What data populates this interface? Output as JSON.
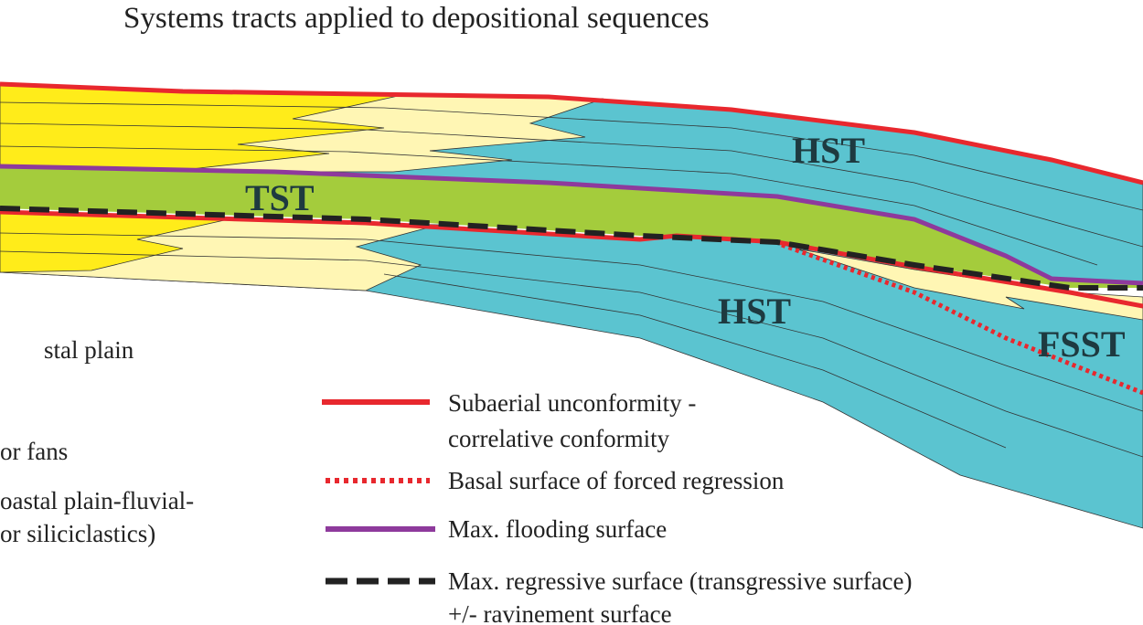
{
  "title": "Systems tracts applied to depositional sequences",
  "labels": [
    "HST",
    "TST",
    "HST",
    "FSST"
  ],
  "left_legend": [
    "stal plain",
    "or fans",
    "oastal plain-fluvial-",
    "or siliciclastics)"
  ],
  "legend": [
    {
      "lines": [
        "Subaerial unconformity -",
        "correlative conformity"
      ]
    },
    {
      "lines": [
        "Basal surface of forced regression"
      ]
    },
    {
      "lines": [
        "Max. flooding surface"
      ]
    },
    {
      "lines": [
        "Max. regressive surface (transgressive surface)",
        "+/- ravinement surface"
      ]
    }
  ]
}
